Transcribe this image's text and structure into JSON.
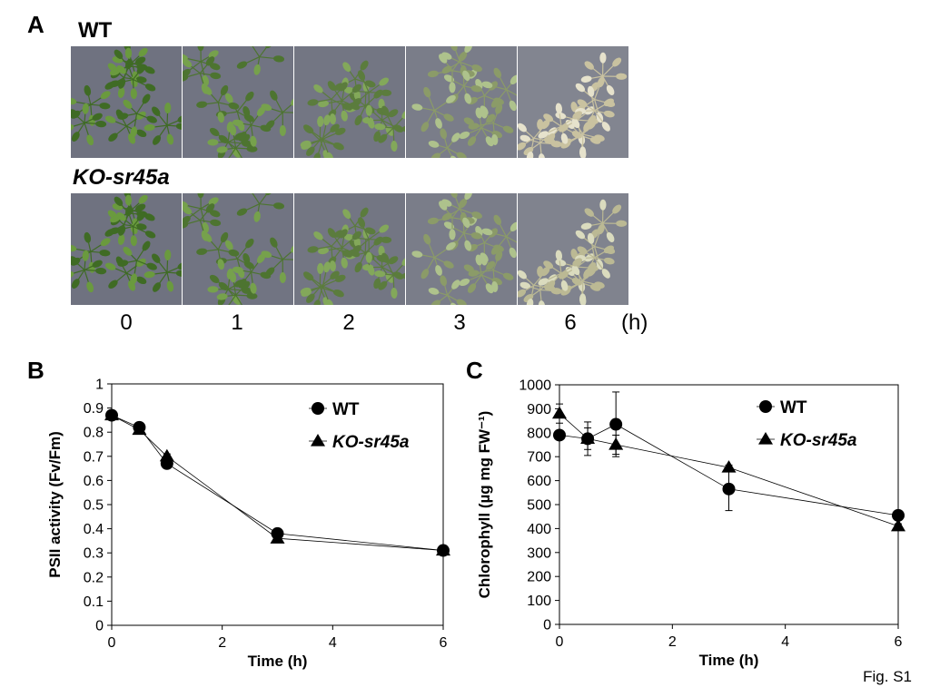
{
  "panel_a": {
    "letter": "A",
    "wt_label": "WT",
    "ko_label": "KO-sr45a",
    "time_points": [
      "0",
      "1",
      "2",
      "3",
      "6"
    ],
    "time_unit": "(h)",
    "wt_photo_bleaching": [
      0.0,
      0.1,
      0.2,
      0.55,
      1.0
    ],
    "ko_photo_bleaching": [
      0.0,
      0.1,
      0.2,
      0.55,
      0.9
    ],
    "colors": {
      "leaf_green": "#6a9a3e",
      "background": "#6f7280",
      "bleached": "#e6e2cc"
    }
  },
  "fig_label": "Fig. S1",
  "chart_data": [
    {
      "panel": "B",
      "type": "line",
      "xlabel": "Time (h)",
      "ylabel": "PSII activity (Fv/Fm)",
      "xlim": [
        0,
        6
      ],
      "ylim": [
        0,
        1
      ],
      "xticks": [
        "0",
        "2",
        "4",
        "6"
      ],
      "yticks": [
        "0",
        "0.1",
        "0.2",
        "0.3",
        "0.4",
        "0.5",
        "0.6",
        "0.7",
        "0.8",
        "0.9",
        "1"
      ],
      "legend_position": "top-right",
      "grid": false,
      "series": [
        {
          "name": "WT",
          "marker": "circle",
          "x": [
            0,
            0.5,
            1,
            3,
            6
          ],
          "y": [
            0.87,
            0.82,
            0.67,
            0.38,
            0.31
          ],
          "err": [
            0.01,
            0.01,
            0.01,
            0.01,
            0.01
          ]
        },
        {
          "name": "KO-sr45a",
          "marker": "triangle",
          "x": [
            0,
            0.5,
            1,
            3,
            6
          ],
          "y": [
            0.87,
            0.81,
            0.7,
            0.36,
            0.31
          ],
          "err": [
            0.01,
            0.01,
            0.01,
            0.01,
            0.01
          ]
        }
      ]
    },
    {
      "panel": "C",
      "type": "line",
      "xlabel": "Time (h)",
      "ylabel": "Chlorophyll (µg mg FW⁻¹)",
      "xlim": [
        0,
        6
      ],
      "ylim": [
        0,
        1000
      ],
      "xticks": [
        "0",
        "2",
        "4",
        "6"
      ],
      "yticks": [
        "0",
        "100",
        "200",
        "300",
        "400",
        "500",
        "600",
        "700",
        "800",
        "900",
        "1000"
      ],
      "legend_position": "top-right",
      "grid": false,
      "series": [
        {
          "name": "WT",
          "marker": "circle",
          "x": [
            0,
            0.5,
            1,
            3,
            6
          ],
          "y": [
            790,
            775,
            835,
            565,
            455
          ],
          "err": [
            15,
            70,
            135,
            90,
            10
          ]
        },
        {
          "name": "KO-sr45a",
          "marker": "triangle",
          "x": [
            0,
            0.5,
            1,
            3,
            6
          ],
          "y": [
            880,
            775,
            750,
            655,
            410
          ],
          "err": [
            40,
            45,
            40,
            10,
            10
          ]
        }
      ]
    }
  ]
}
